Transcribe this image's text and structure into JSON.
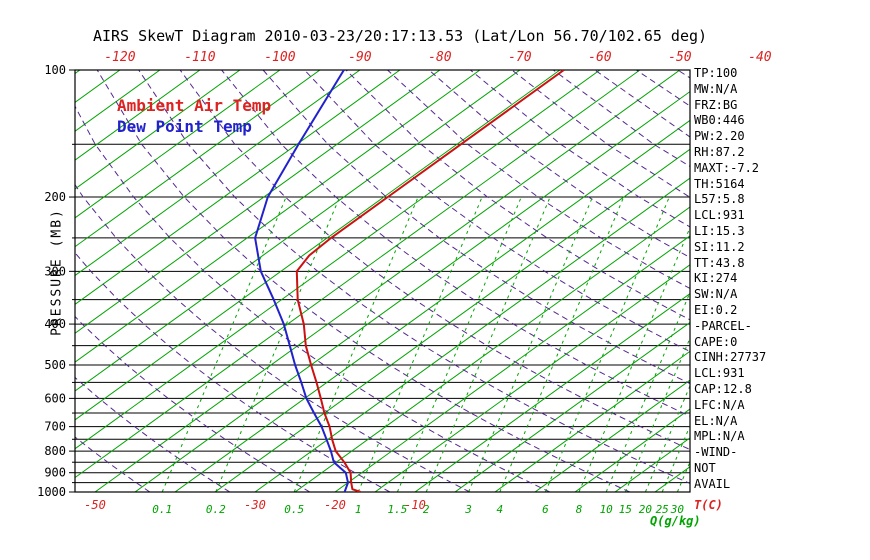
{
  "title": "AIRS SkewT Diagram 2010-03-23/20:17:13.53 (Lat/Lon 56.70/102.65 deg)",
  "legend": {
    "temp": "Ambient Air Temp",
    "dewpoint": "Dew Point Temp"
  },
  "axes": {
    "y_label": "PRESSURE (MB)",
    "x_label_temp": "T(C)",
    "x_label_q": "Q(g/kg)"
  },
  "side_stats": [
    "TP:100",
    "MW:N/A",
    "FRZ:BG",
    "WB0:446",
    "PW:2.20",
    "RH:87.2",
    "MAXT:-7.2",
    "TH:5164",
    "L57:5.8",
    "LCL:931",
    "LI:15.3",
    "SI:11.2",
    "TT:43.8",
    "KI:274",
    "SW:N/A",
    "EI:0.2",
    "-PARCEL-",
    "CAPE:0",
    "CINH:27737",
    "LCL:931",
    "CAP:12.8",
    "LFC:N/A",
    "EL:N/A",
    "MPL:N/A",
    "-WIND-",
    "NOT",
    "AVAIL"
  ],
  "colors": {
    "isotherm_green": "#00a400",
    "adiabat_purple": "#53298f",
    "temp_red": "#dd2222",
    "curve_red": "#cc1111",
    "dewpoint_blue": "#2222cc",
    "axis_black": "#000000"
  },
  "chart_data": {
    "type": "line",
    "subtype": "skew-t-log-p",
    "title": "AIRS SkewT Diagram 2010-03-23/20:17:13.53 (Lat/Lon 56.70/102.65 deg)",
    "x_axis": {
      "unit": "T(C)",
      "top_labels": [
        -120,
        -110,
        -100,
        -90,
        -80,
        -70,
        -60,
        -50,
        -40
      ],
      "bottom_labels": [
        -50,
        -30,
        -20,
        -10
      ]
    },
    "y_axis": {
      "unit": "PRESSURE (MB)",
      "scale": "log",
      "ticks": [
        100,
        200,
        300,
        400,
        500,
        600,
        700,
        800,
        900,
        1000
      ],
      "grid": [
        100,
        150,
        200,
        250,
        300,
        350,
        400,
        450,
        500,
        550,
        600,
        650,
        700,
        750,
        800,
        850,
        900,
        950,
        1000
      ]
    },
    "isotherms": {
      "min": -125,
      "max": 25,
      "step": 5,
      "unit": "C"
    },
    "dry_adiabats": {
      "theta_min_k": 220,
      "theta_max_k": 440,
      "step_k": 10
    },
    "mixing_ratio_lines": [
      {
        "q": 0.1,
        "x_temp": -41.6
      },
      {
        "q": 0.2,
        "x_temp": -34.9
      },
      {
        "q": 0.5,
        "x_temp": -25.1
      },
      {
        "q": 1,
        "x_temp": -17.1
      },
      {
        "q": 1.5,
        "x_temp": -12.2
      },
      {
        "q": 2,
        "x_temp": -8.6
      },
      {
        "q": 3,
        "x_temp": -3.3
      },
      {
        "q": 4,
        "x_temp": 0.6
      },
      {
        "q": 6,
        "x_temp": 6.3
      },
      {
        "q": 8,
        "x_temp": 10.5
      },
      {
        "q": 10,
        "x_temp": 13.9
      },
      {
        "q": 15,
        "x_temp": 16.3
      },
      {
        "q": 20,
        "x_temp": 18.8
      },
      {
        "q": 25,
        "x_temp": 20.9
      },
      {
        "q": 30,
        "x_temp": 22.8
      }
    ],
    "series": [
      {
        "name": "Ambient Air Temp",
        "color": "#cc1111",
        "points_pressure_temp": [
          [
            1000,
            -16.8
          ],
          [
            985,
            -18.3
          ],
          [
            950,
            -19.6
          ],
          [
            900,
            -21.4
          ],
          [
            850,
            -24.0
          ],
          [
            800,
            -27.0
          ],
          [
            750,
            -29.5
          ],
          [
            700,
            -32.0
          ],
          [
            650,
            -35.0
          ],
          [
            600,
            -38.0
          ],
          [
            550,
            -41.3
          ],
          [
            500,
            -45.0
          ],
          [
            450,
            -49.0
          ],
          [
            400,
            -53.0
          ],
          [
            350,
            -58.0
          ],
          [
            300,
            -63.0
          ],
          [
            275,
            -64.2
          ],
          [
            250,
            -64.5
          ],
          [
            200,
            -64.5
          ],
          [
            150,
            -64.5
          ],
          [
            100,
            -64.5
          ]
        ]
      },
      {
        "name": "Dew Point Temp",
        "color": "#2222cc",
        "points_pressure_temp": [
          [
            1000,
            -18.8
          ],
          [
            950,
            -20.0
          ],
          [
            900,
            -22.0
          ],
          [
            850,
            -25.3
          ],
          [
            800,
            -27.6
          ],
          [
            750,
            -30.2
          ],
          [
            700,
            -33.0
          ],
          [
            650,
            -36.3
          ],
          [
            600,
            -39.8
          ],
          [
            550,
            -43.2
          ],
          [
            500,
            -47.0
          ],
          [
            450,
            -51.0
          ],
          [
            400,
            -55.5
          ],
          [
            350,
            -61.0
          ],
          [
            300,
            -67.5
          ],
          [
            250,
            -74.0
          ],
          [
            200,
            -79.5
          ],
          [
            150,
            -84.8
          ],
          [
            100,
            -92.0
          ]
        ]
      }
    ]
  }
}
